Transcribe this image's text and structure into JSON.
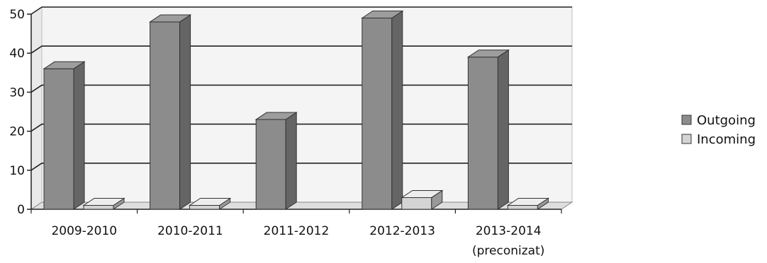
{
  "chart_data": {
    "type": "bar",
    "categories": [
      "2009-2010",
      "2010-2011",
      "2011-2012",
      "2012-2013",
      "2013-2014"
    ],
    "category_sublabels": [
      "",
      "",
      "",
      "",
      "(preconizat)"
    ],
    "series": [
      {
        "name": "Outgoing",
        "values": [
          36,
          48,
          23,
          49,
          39
        ]
      },
      {
        "name": "Incoming",
        "values": [
          1,
          1,
          0,
          3,
          1
        ]
      }
    ],
    "ylim": [
      0,
      50
    ],
    "yticks": [
      0,
      10,
      20,
      30,
      40,
      50
    ],
    "xlabel": "",
    "ylabel": "",
    "grid": true,
    "legend_position": "right",
    "colors": {
      "outgoing": "#8c8c8c",
      "incoming": "#d4d4d4",
      "grid": "#222222",
      "wall": "#f4f4f4"
    }
  }
}
